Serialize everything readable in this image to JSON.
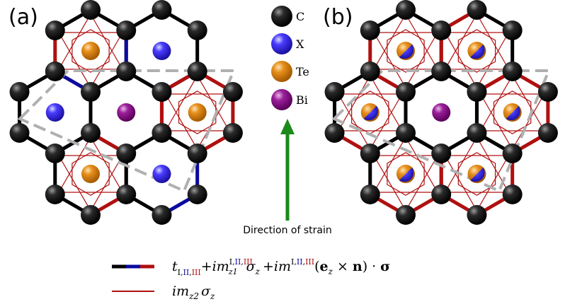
{
  "panels": [
    {
      "label": "(a)"
    },
    {
      "label": "(b)"
    }
  ],
  "atom_legend": [
    {
      "symbol": "C",
      "color": "#111111"
    },
    {
      "symbol": "X",
      "color": "#3a2bff"
    },
    {
      "symbol": "Te",
      "color": "#e08a1a"
    },
    {
      "symbol": "Bi",
      "color": "#8a1a8a"
    }
  ],
  "strain": {
    "label": "Direction of strain",
    "arrow_color": "#1a8a1a"
  },
  "bond_colors": {
    "I": "#000000",
    "II": "#0a0aa0",
    "III": "#b01010"
  },
  "formula": {
    "t": "t",
    "sub_I": "I",
    "sub_II": "II",
    "sub_III": "III",
    "plus1": "+",
    "im1": "im",
    "z1": "z1",
    "sigma_z1": "σ",
    "z_sub": "z",
    "plus2": "+",
    "im2": "im",
    "cross_open": "(",
    "e": "e",
    "e_sub": "z",
    "times": "×",
    "n": "n",
    "cross_close": ")",
    "dot": "·",
    "sigma_bold": "σ",
    "line2_im": "im",
    "line2_sub": "z2",
    "line2_sigma": "σ",
    "line2_z": "z"
  }
}
